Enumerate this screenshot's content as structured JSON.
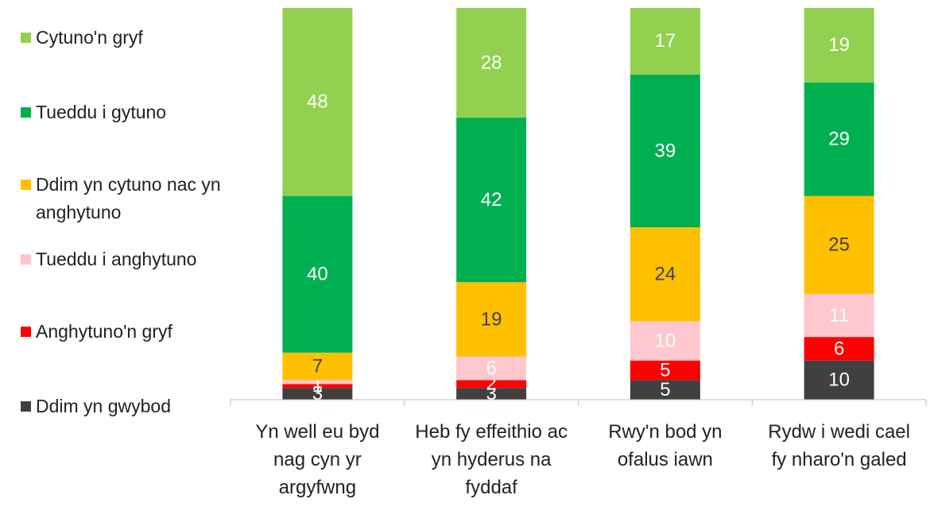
{
  "chart_data": {
    "type": "stacked_bar",
    "categories": [
      "Yn well eu byd nag cyn yr argyfwng",
      "Heb fy effeithio ac yn hyderus na fyddaf",
      "Rwy'n bod yn ofalus iawn",
      "Rydw i wedi cael fy nharo'n galed"
    ],
    "series": [
      {
        "name": "Ddim yn gwybod",
        "color": "#404040",
        "values": [
          3,
          3,
          5,
          10
        ]
      },
      {
        "name": "Anghytuno'n gryf",
        "color": "#ff0000",
        "values": [
          1,
          2,
          5,
          6
        ]
      },
      {
        "name": "Tueddu i anghytuno",
        "color": "#ffc7ce",
        "values": [
          1,
          6,
          10,
          11
        ]
      },
      {
        "name": "Ddim yn cytuno nac yn anghytuno",
        "color": "#ffc000",
        "values": [
          7,
          19,
          24,
          25
        ]
      },
      {
        "name": "Tueddu i gytuno",
        "color": "#00b050",
        "values": [
          40,
          42,
          39,
          29
        ]
      },
      {
        "name": "Cytuno'n gryf",
        "color": "#92d050",
        "values": [
          48,
          28,
          17,
          19
        ]
      }
    ],
    "ylim": [
      0,
      100
    ],
    "legend": "left"
  }
}
